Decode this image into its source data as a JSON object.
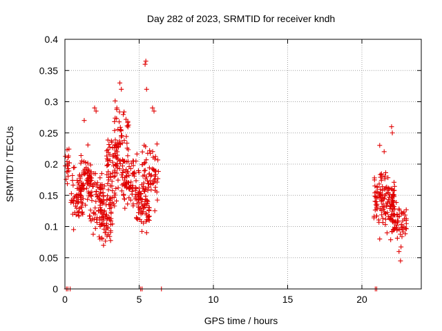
{
  "chart_data": {
    "type": "scatter",
    "title": "Day 282 of 2023, SRMTID for receiver kndh",
    "xlabel": "GPS time / hours",
    "ylabel": "SRMTID / TECUs",
    "xlim": [
      0,
      24
    ],
    "ylim": [
      0,
      0.4
    ],
    "xticks": [
      0,
      5,
      10,
      15,
      20
    ],
    "yticks": [
      0,
      0.05,
      0.1,
      0.15,
      0.2,
      0.25,
      0.3,
      0.35,
      0.4
    ],
    "grid": true,
    "marker": "+",
    "marker_color": "#e00000",
    "series": [
      {
        "name": "SRMTID",
        "clusters": [
          {
            "x_range": [
              0.0,
              0.3
            ],
            "y_center": 0.2,
            "y_spread": 0.03,
            "count": 18
          },
          {
            "x_range": [
              0.4,
              1.2
            ],
            "y_center": 0.14,
            "y_spread": 0.04,
            "count": 60
          },
          {
            "x_range": [
              1.0,
              1.8
            ],
            "y_center": 0.18,
            "y_spread": 0.04,
            "count": 60
          },
          {
            "x_range": [
              1.6,
              2.6
            ],
            "y_center": 0.14,
            "y_spread": 0.05,
            "count": 70
          },
          {
            "x_range": [
              2.3,
              3.2
            ],
            "y_center": 0.12,
            "y_spread": 0.04,
            "count": 70
          },
          {
            "x_range": [
              2.8,
              3.6
            ],
            "y_center": 0.19,
            "y_spread": 0.05,
            "count": 60
          },
          {
            "x_range": [
              3.3,
              4.4
            ],
            "y_center": 0.24,
            "y_spread": 0.06,
            "count": 60
          },
          {
            "x_range": [
              3.8,
              5.0
            ],
            "y_center": 0.17,
            "y_spread": 0.04,
            "count": 80
          },
          {
            "x_range": [
              4.8,
              5.7
            ],
            "y_center": 0.13,
            "y_spread": 0.03,
            "count": 60
          },
          {
            "x_range": [
              5.2,
              6.3
            ],
            "y_center": 0.18,
            "y_spread": 0.05,
            "count": 70
          },
          {
            "x_range": [
              20.8,
              21.4
            ],
            "y_center": 0.15,
            "y_spread": 0.04,
            "count": 50
          },
          {
            "x_range": [
              21.3,
              22.2
            ],
            "y_center": 0.14,
            "y_spread": 0.04,
            "count": 70
          },
          {
            "x_range": [
              21.9,
              23.0
            ],
            "y_center": 0.11,
            "y_spread": 0.03,
            "count": 70
          }
        ],
        "peaks": [
          {
            "x": 1.3,
            "y": 0.27
          },
          {
            "x": 2.0,
            "y": 0.29
          },
          {
            "x": 2.1,
            "y": 0.285
          },
          {
            "x": 3.5,
            "y": 0.29
          },
          {
            "x": 3.7,
            "y": 0.33
          },
          {
            "x": 3.8,
            "y": 0.32
          },
          {
            "x": 5.4,
            "y": 0.36
          },
          {
            "x": 5.45,
            "y": 0.365
          },
          {
            "x": 5.5,
            "y": 0.32
          },
          {
            "x": 5.9,
            "y": 0.29
          },
          {
            "x": 6.0,
            "y": 0.285
          },
          {
            "x": 2.5,
            "y": 0.08
          },
          {
            "x": 2.6,
            "y": 0.07
          },
          {
            "x": 5.5,
            "y": 0.09
          },
          {
            "x": 22.0,
            "y": 0.26
          },
          {
            "x": 22.05,
            "y": 0.25
          },
          {
            "x": 21.2,
            "y": 0.23
          },
          {
            "x": 21.5,
            "y": 0.22
          },
          {
            "x": 22.5,
            "y": 0.06
          },
          {
            "x": 22.6,
            "y": 0.045
          },
          {
            "x": 21.2,
            "y": 0.08
          }
        ],
        "zero_points": [
          {
            "x": 0.1,
            "y": 0
          },
          {
            "x": 0.2,
            "y": 0
          },
          {
            "x": 0.35,
            "y": 0
          },
          {
            "x": 5.1,
            "y": 0
          },
          {
            "x": 5.2,
            "y": 0
          },
          {
            "x": 6.5,
            "y": 0
          },
          {
            "x": 20.9,
            "y": 0
          },
          {
            "x": 21.0,
            "y": 0
          }
        ]
      }
    ]
  }
}
